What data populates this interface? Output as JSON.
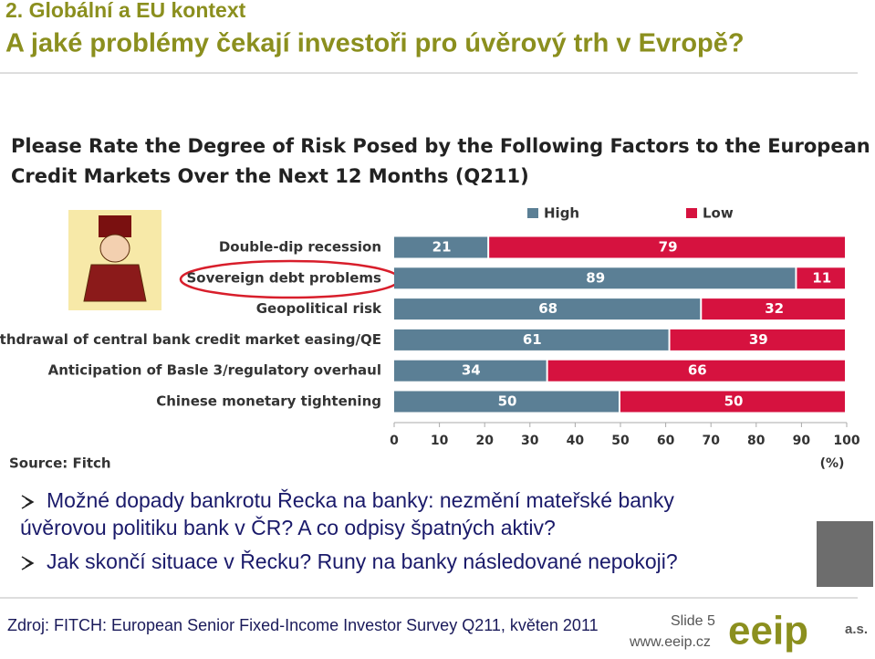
{
  "header": {
    "section": "2. Globální a EU kontext",
    "title": "A jaké problémy čekají investoři pro úvěrový trh v Evropě?"
  },
  "chart_data": {
    "type": "stacked-bar-horizontal",
    "title": [
      "Please Rate the Degree of Risk Posed by the Following Factors to the European",
      "Credit Markets Over the Next 12 Months (Q211)"
    ],
    "categories": [
      "Double-dip recession",
      "Sovereign debt problems",
      "Geopolitical risk",
      "Withdrawal of central bank credit market easing/QE",
      "Anticipation of Basle 3/regulatory overhaul",
      "Chinese monetary tightening"
    ],
    "series": [
      {
        "name": "High",
        "color": "#5b7f95",
        "values": [
          21,
          89,
          68,
          61,
          34,
          50
        ]
      },
      {
        "name": "Low",
        "color": "#d6123f",
        "values": [
          79,
          11,
          32,
          39,
          66,
          50
        ]
      }
    ],
    "xlim": [
      0,
      100
    ],
    "xticks": [
      0,
      10,
      20,
      30,
      40,
      50,
      60,
      70,
      80,
      90,
      100
    ],
    "x_label": "(%)",
    "source": "Source: Fitch",
    "legend": "top-right"
  },
  "bullets": [
    [
      "Možné dopady bankrotu Řecka na banky: nezmění mateřské banky",
      "úvěrovou politiku bank v ČR? A co odpisy špatných aktiv?"
    ],
    [
      "Jak skončí situace v Řecku? Runy na banky následované nepokoji?"
    ]
  ],
  "footer": {
    "source": "Zdroj: FITCH: European Senior Fixed-Income Investor Survey Q211, květen 2011",
    "slide": "Slide 5",
    "url": "www.eeip.cz",
    "logo": "eeip",
    "logo_suffix": "a.s."
  }
}
